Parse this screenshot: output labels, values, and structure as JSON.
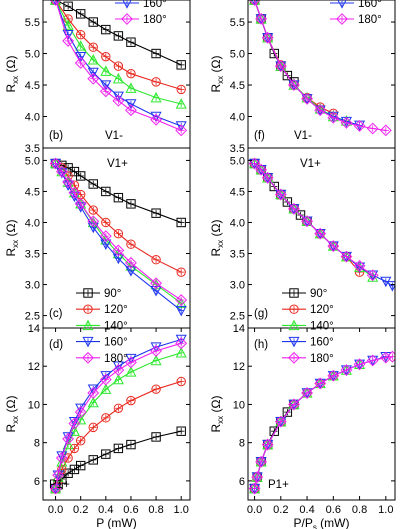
{
  "colors": {
    "90": "#000000",
    "120": "#e8281f",
    "140": "#2ee82e",
    "160": "#1f35ee",
    "180": "#f020f0"
  },
  "legend_labels": {
    "90": "90°",
    "120": "120°",
    "140": "140°",
    "160": "160°",
    "180": "180°"
  },
  "chart_data": [
    {
      "type": "line",
      "panel_label": "(b)",
      "annotation": "V1-",
      "ylabel": "R_xx (Ω)",
      "xlabel": "",
      "title": "",
      "xlim": [
        -0.1,
        1.07
      ],
      "ylim": [
        3.5,
        5.85
      ],
      "yticks": [
        "3.5",
        "4.0",
        "4.5",
        "5.0",
        "5.5"
      ],
      "xticks": [],
      "legend": {
        "position": "top-right",
        "entries": [
          "160",
          "180"
        ]
      },
      "series": [
        {
          "key": "90",
          "x": [
            0,
            0.1,
            0.2,
            0.3,
            0.4,
            0.5,
            0.6,
            0.8,
            1.0
          ],
          "y": [
            5.85,
            5.75,
            5.63,
            5.5,
            5.38,
            5.28,
            5.18,
            5.0,
            4.82
          ]
        },
        {
          "key": "120",
          "x": [
            0,
            0.1,
            0.2,
            0.3,
            0.4,
            0.5,
            0.6,
            0.8,
            1.0
          ],
          "y": [
            5.85,
            5.55,
            5.3,
            5.1,
            4.95,
            4.8,
            4.68,
            4.55,
            4.43
          ]
        },
        {
          "key": "140",
          "x": [
            0,
            0.1,
            0.2,
            0.3,
            0.4,
            0.5,
            0.6,
            0.8,
            1.0
          ],
          "y": [
            5.85,
            5.45,
            5.12,
            4.9,
            4.72,
            4.6,
            4.45,
            4.3,
            4.2
          ]
        },
        {
          "key": "160",
          "x": [
            0,
            0.1,
            0.2,
            0.3,
            0.4,
            0.5,
            0.6,
            0.8,
            1.0
          ],
          "y": [
            5.85,
            5.3,
            4.95,
            4.7,
            4.5,
            4.32,
            4.2,
            4.0,
            3.85
          ]
        },
        {
          "key": "180",
          "x": [
            0,
            0.1,
            0.2,
            0.3,
            0.4,
            0.5,
            0.6,
            0.8,
            1.0
          ],
          "y": [
            5.85,
            5.2,
            4.85,
            4.6,
            4.4,
            4.25,
            4.1,
            3.95,
            3.78
          ]
        }
      ]
    },
    {
      "type": "line",
      "panel_label": "(f)",
      "annotation": "V1-",
      "ylabel": "R_xx (Ω)",
      "xlabel": "",
      "title": "",
      "xlim": [
        -0.05,
        1.07
      ],
      "ylim": [
        3.5,
        5.85
      ],
      "yticks": [
        "3.5",
        "4.0",
        "4.5",
        "5.0",
        "5.5"
      ],
      "xticks": [],
      "legend": {
        "position": "top-right",
        "entries": [
          "160",
          "180"
        ]
      },
      "series": [
        {
          "key": "90",
          "x": [
            0.0,
            0.05,
            0.1,
            0.15,
            0.2,
            0.25,
            0.3
          ],
          "y": [
            5.85,
            5.55,
            5.25,
            5.0,
            4.8,
            4.65,
            4.55
          ]
        },
        {
          "key": "120",
          "x": [
            0.0,
            0.05,
            0.1,
            0.2,
            0.3,
            0.4,
            0.5,
            0.6
          ],
          "y": [
            5.85,
            5.55,
            5.25,
            4.82,
            4.5,
            4.3,
            4.15,
            4.05
          ]
        },
        {
          "key": "140",
          "x": [
            0.0,
            0.05,
            0.1,
            0.2,
            0.3,
            0.4,
            0.5,
            0.6,
            0.7
          ],
          "y": [
            5.85,
            5.55,
            5.25,
            4.8,
            4.5,
            4.3,
            4.12,
            4.0,
            3.93
          ]
        },
        {
          "key": "160",
          "x": [
            0.0,
            0.05,
            0.1,
            0.2,
            0.3,
            0.4,
            0.5,
            0.6,
            0.7,
            0.8
          ],
          "y": [
            5.85,
            5.55,
            5.25,
            4.8,
            4.5,
            4.28,
            4.1,
            4.0,
            3.92,
            3.86
          ]
        },
        {
          "key": "180",
          "x": [
            0.0,
            0.05,
            0.1,
            0.2,
            0.3,
            0.4,
            0.5,
            0.6,
            0.7,
            0.8,
            0.9,
            1.0
          ],
          "y": [
            5.85,
            5.55,
            5.25,
            4.8,
            4.5,
            4.28,
            4.1,
            3.98,
            3.9,
            3.85,
            3.81,
            3.78
          ]
        }
      ]
    },
    {
      "type": "line",
      "panel_label": "(c)",
      "annotation": "V1+",
      "ylabel": "R_xx (Ω)",
      "xlabel": "",
      "title": "",
      "xlim": [
        -0.1,
        1.07
      ],
      "ylim": [
        2.3,
        5.2
      ],
      "yticks": [
        "2.5",
        "3.0",
        "3.5",
        "4.0",
        "4.5",
        "5.0"
      ],
      "xticks": [],
      "legend": {
        "position": "bottom-left",
        "entries": [
          "90",
          "120",
          "140",
          "160",
          "180"
        ]
      },
      "series": [
        {
          "key": "90",
          "x": [
            0,
            0.05,
            0.1,
            0.15,
            0.2,
            0.3,
            0.4,
            0.5,
            0.6,
            0.8,
            1.0
          ],
          "y": [
            4.95,
            4.92,
            4.88,
            4.82,
            4.75,
            4.62,
            4.5,
            4.4,
            4.3,
            4.15,
            4.0
          ]
        },
        {
          "key": "120",
          "x": [
            0,
            0.05,
            0.1,
            0.15,
            0.2,
            0.3,
            0.4,
            0.5,
            0.6,
            0.8,
            1.0
          ],
          "y": [
            4.95,
            4.88,
            4.75,
            4.6,
            4.45,
            4.2,
            4.0,
            3.82,
            3.65,
            3.4,
            3.2
          ]
        },
        {
          "key": "140",
          "x": [
            0,
            0.05,
            0.1,
            0.15,
            0.2,
            0.3,
            0.4,
            0.5,
            0.6,
            0.8,
            1.0
          ],
          "y": [
            4.95,
            4.82,
            4.65,
            4.48,
            4.3,
            4.0,
            3.72,
            3.5,
            3.3,
            3.0,
            2.7
          ]
        },
        {
          "key": "160",
          "x": [
            0,
            0.05,
            0.1,
            0.15,
            0.2,
            0.3,
            0.4,
            0.5,
            0.6,
            0.8,
            1.0
          ],
          "y": [
            4.95,
            4.8,
            4.6,
            4.42,
            4.25,
            3.92,
            3.65,
            3.42,
            3.22,
            2.9,
            2.58
          ]
        },
        {
          "key": "180",
          "x": [
            0,
            0.05,
            0.1,
            0.15,
            0.2,
            0.3,
            0.4,
            0.5,
            0.6,
            0.8,
            1.0
          ],
          "y": [
            4.95,
            4.82,
            4.65,
            4.48,
            4.3,
            4.02,
            3.78,
            3.55,
            3.35,
            3.02,
            2.75
          ]
        }
      ]
    },
    {
      "type": "line",
      "panel_label": "(g)",
      "annotation": "V1+",
      "ylabel": "R_xx (Ω)",
      "xlabel": "",
      "title": "",
      "xlim": [
        -0.05,
        1.07
      ],
      "ylim": [
        2.3,
        5.2
      ],
      "yticks": [
        "2.5",
        "3.0",
        "3.5",
        "4.0",
        "4.5",
        "5.0"
      ],
      "xticks": [],
      "legend": {
        "position": "bottom-left",
        "entries": [
          "90",
          "120",
          "140",
          "160",
          "180"
        ]
      },
      "series": [
        {
          "key": "90",
          "x": [
            0,
            0.05,
            0.1,
            0.15,
            0.2,
            0.25,
            0.3,
            0.35,
            0.4
          ],
          "y": [
            4.95,
            4.85,
            4.72,
            4.58,
            4.45,
            4.33,
            4.22,
            4.12,
            4.02
          ]
        },
        {
          "key": "120",
          "x": [
            0,
            0.05,
            0.1,
            0.2,
            0.3,
            0.4,
            0.5,
            0.6,
            0.7,
            0.8
          ],
          "y": [
            4.95,
            4.85,
            4.72,
            4.45,
            4.22,
            4.02,
            3.82,
            3.62,
            3.45,
            3.2
          ]
        },
        {
          "key": "140",
          "x": [
            0,
            0.05,
            0.1,
            0.2,
            0.3,
            0.4,
            0.5,
            0.6,
            0.7,
            0.8,
            0.9
          ],
          "y": [
            4.95,
            4.85,
            4.72,
            4.45,
            4.22,
            4.02,
            3.82,
            3.62,
            3.45,
            3.28,
            3.12
          ]
        },
        {
          "key": "160",
          "x": [
            0,
            0.05,
            0.1,
            0.2,
            0.3,
            0.4,
            0.5,
            0.6,
            0.7,
            0.8,
            0.9,
            1.0,
            1.05
          ],
          "y": [
            4.95,
            4.85,
            4.72,
            4.45,
            4.22,
            4.02,
            3.82,
            3.62,
            3.45,
            3.28,
            3.15,
            3.05,
            2.98
          ]
        },
        {
          "key": "180",
          "x": [
            0,
            0.05,
            0.1,
            0.2,
            0.3,
            0.4,
            0.5,
            0.6,
            0.7,
            0.8,
            0.9
          ],
          "y": [
            4.95,
            4.85,
            4.72,
            4.45,
            4.22,
            4.02,
            3.82,
            3.62,
            3.45,
            3.3,
            3.15
          ]
        }
      ]
    },
    {
      "type": "line",
      "panel_label": "(d)",
      "annotation": "P1+",
      "ylabel": "R_xx (Ω)",
      "xlabel": "P (mW)",
      "title": "",
      "xlim": [
        -0.1,
        1.07
      ],
      "ylim": [
        5.0,
        14.0
      ],
      "yticks": [
        "6",
        "8",
        "10",
        "12",
        "14"
      ],
      "xticks": [
        "0.0",
        "0.2",
        "0.4",
        "0.6",
        "0.8",
        "1.0"
      ],
      "legend": {
        "position": "top-left",
        "entries": [
          "90",
          "120",
          "140",
          "160",
          "180"
        ]
      },
      "series": [
        {
          "key": "90",
          "x": [
            0,
            0.02,
            0.05,
            0.1,
            0.15,
            0.2,
            0.3,
            0.4,
            0.5,
            0.6,
            0.8,
            1.0
          ],
          "y": [
            5.6,
            5.8,
            6.1,
            6.4,
            6.6,
            6.8,
            7.1,
            7.4,
            7.7,
            7.9,
            8.3,
            8.6
          ]
        },
        {
          "key": "120",
          "x": [
            0,
            0.02,
            0.05,
            0.1,
            0.15,
            0.2,
            0.3,
            0.4,
            0.5,
            0.6,
            0.8,
            1.0
          ],
          "y": [
            5.6,
            6.0,
            6.6,
            7.2,
            7.7,
            8.1,
            8.8,
            9.3,
            9.8,
            10.2,
            10.8,
            11.2
          ]
        },
        {
          "key": "140",
          "x": [
            0,
            0.02,
            0.05,
            0.1,
            0.15,
            0.2,
            0.3,
            0.4,
            0.5,
            0.6,
            0.8,
            1.0
          ],
          "y": [
            5.6,
            6.2,
            7.0,
            7.9,
            8.6,
            9.2,
            10.1,
            10.8,
            11.3,
            11.7,
            12.3,
            12.7
          ]
        },
        {
          "key": "160",
          "x": [
            0,
            0.02,
            0.05,
            0.1,
            0.15,
            0.2,
            0.3,
            0.4,
            0.5,
            0.6,
            0.8,
            1.0
          ],
          "y": [
            5.6,
            6.3,
            7.3,
            8.3,
            9.1,
            9.8,
            10.8,
            11.5,
            12.0,
            12.4,
            13.0,
            13.4
          ]
        },
        {
          "key": "180",
          "x": [
            0,
            0.02,
            0.05,
            0.1,
            0.15,
            0.2,
            0.3,
            0.4,
            0.5,
            0.6,
            0.8,
            1.0
          ],
          "y": [
            5.6,
            6.3,
            7.2,
            8.2,
            9.0,
            9.6,
            10.6,
            11.3,
            11.8,
            12.2,
            12.8,
            13.2
          ]
        }
      ]
    },
    {
      "type": "line",
      "panel_label": "(h)",
      "annotation": "P1+",
      "ylabel": "R_xx (Ω)",
      "xlabel": "P/P_s (mW)",
      "title": "",
      "xlim": [
        -0.05,
        1.07
      ],
      "ylim": [
        5.0,
        14.0
      ],
      "yticks": [
        "6",
        "8",
        "10",
        "12",
        "14"
      ],
      "xticks": [
        "0.0",
        "0.2",
        "0.4",
        "0.6",
        "0.8",
        "1.0"
      ],
      "legend": {
        "position": "top-left",
        "entries": [
          "90",
          "120",
          "140",
          "160",
          "180"
        ]
      },
      "series": [
        {
          "key": "90",
          "x": [
            0,
            0.02,
            0.05,
            0.1,
            0.15,
            0.2,
            0.25,
            0.3
          ],
          "y": [
            5.6,
            6.2,
            7.0,
            7.9,
            8.6,
            9.1,
            9.6,
            10.0
          ]
        },
        {
          "key": "120",
          "x": [
            0,
            0.02,
            0.05,
            0.1,
            0.2,
            0.3,
            0.4,
            0.5,
            0.6
          ],
          "y": [
            5.6,
            6.2,
            7.0,
            7.9,
            9.1,
            10.0,
            10.6,
            11.1,
            11.5
          ]
        },
        {
          "key": "140",
          "x": [
            0,
            0.02,
            0.05,
            0.1,
            0.2,
            0.3,
            0.4,
            0.5,
            0.6,
            0.7,
            0.8
          ],
          "y": [
            5.6,
            6.2,
            7.0,
            7.9,
            9.1,
            10.0,
            10.6,
            11.1,
            11.5,
            11.8,
            12.1
          ]
        },
        {
          "key": "160",
          "x": [
            0,
            0.02,
            0.05,
            0.1,
            0.2,
            0.3,
            0.4,
            0.5,
            0.6,
            0.7,
            0.8,
            0.9,
            1.0
          ],
          "y": [
            5.6,
            6.2,
            7.0,
            7.9,
            9.1,
            10.0,
            10.6,
            11.1,
            11.5,
            11.8,
            12.1,
            12.3,
            12.5
          ]
        },
        {
          "key": "180",
          "x": [
            0,
            0.02,
            0.05,
            0.1,
            0.2,
            0.3,
            0.4,
            0.5,
            0.6,
            0.7,
            0.8,
            0.9,
            1.0,
            1.05
          ],
          "y": [
            5.6,
            6.2,
            7.0,
            7.9,
            9.1,
            10.0,
            10.6,
            11.1,
            11.5,
            11.8,
            12.1,
            12.3,
            12.45,
            12.5
          ]
        }
      ]
    }
  ]
}
